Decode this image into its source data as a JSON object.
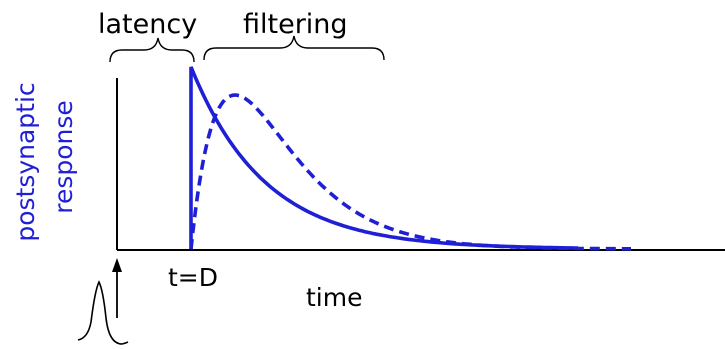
{
  "labels": {
    "latency": "latency",
    "filtering": "filtering",
    "y_axis_line1": "postsynaptic",
    "y_axis_line2": "response",
    "delay_tick": "t=D",
    "x_axis": "time"
  },
  "colors": {
    "response_curve": "#1f1fd6",
    "axis": "#000000",
    "y_axis_label": "#1f1fd6",
    "text": "#000000"
  },
  "legend": {
    "solid_curve": "instantaneous-rise exponential decay starting at t=D",
    "dashed_curve": "alpha-function (filtered) response starting at t=D"
  },
  "icons": {
    "stimulus_spike": "action-potential-waveform",
    "stimulus_arrow": "up-arrow"
  }
}
